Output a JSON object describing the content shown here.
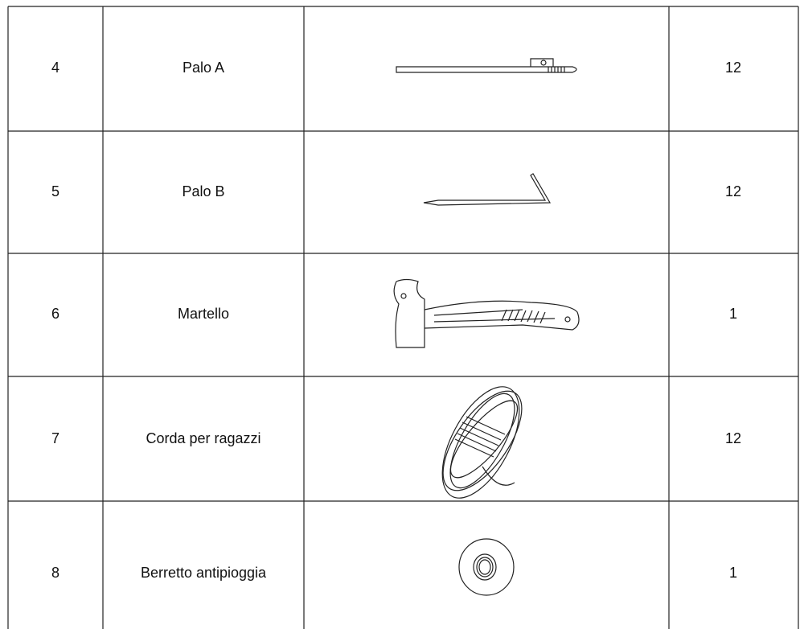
{
  "table": {
    "rows": [
      {
        "number": "4",
        "name": "Palo A",
        "quantity": "12"
      },
      {
        "number": "5",
        "name": "Palo B",
        "quantity": "12"
      },
      {
        "number": "6",
        "name": "Martello",
        "quantity": "1"
      },
      {
        "number": "7",
        "name": "Corda per ragazzi",
        "quantity": "12"
      },
      {
        "number": "8",
        "name": "Berretto antipioggia",
        "quantity": "1"
      }
    ]
  }
}
